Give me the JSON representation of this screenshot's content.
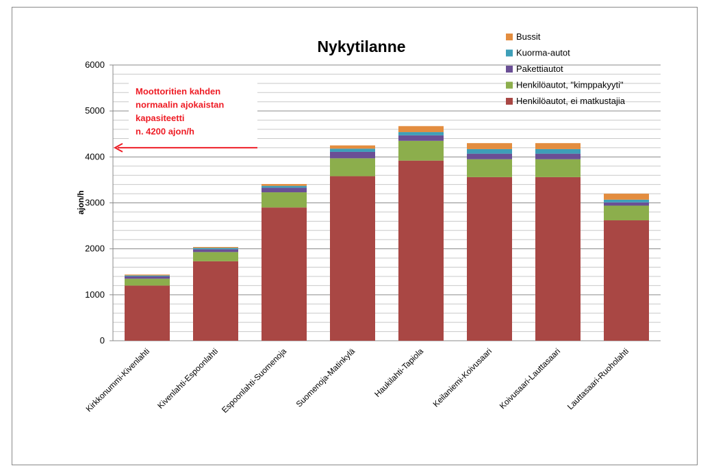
{
  "chart_data": {
    "type": "stacked_bar",
    "title": "Nykytilanne",
    "y_label": "ajon/h",
    "categories": [
      "Kirkkonummi-Kivenlahti",
      "Kivenlahti-Espoonlahti",
      "Espoonlahti-Suomenoja",
      "Suomenoja-Matinkylä",
      "Haukilahti-Tapiola",
      "Keilaniemi-Koivusaari",
      "Koivusaari-Lauttasaari",
      "Lauttasaari-Ruoholahti"
    ],
    "series": [
      {
        "name": "Henkilöautot, ei matkustajia",
        "color": "#a94744",
        "values": [
          1200,
          1730,
          2900,
          3580,
          3920,
          3560,
          3560,
          2620
        ]
      },
      {
        "name": "Henkilöautot, \"kimppakyyti\"",
        "color": "#8cae4c",
        "values": [
          150,
          200,
          330,
          390,
          430,
          390,
          390,
          320
        ]
      },
      {
        "name": "Pakettiautot",
        "color": "#6a4f95",
        "values": [
          50,
          60,
          100,
          140,
          120,
          120,
          120,
          70
        ]
      },
      {
        "name": "Kuorma-autot",
        "color": "#3e9fb8",
        "values": [
          20,
          30,
          40,
          70,
          70,
          100,
          100,
          60
        ]
      },
      {
        "name": "Bussit",
        "color": "#e38d3f",
        "values": [
          20,
          20,
          40,
          70,
          130,
          130,
          130,
          130
        ]
      }
    ],
    "ylim": [
      0,
      6000
    ],
    "yticks": [
      0,
      1000,
      2000,
      3000,
      4000,
      5000,
      6000
    ],
    "minor_yticks": [
      200,
      400,
      600,
      800,
      1200,
      1400,
      1600,
      1800,
      2200,
      2400,
      2600,
      2800,
      3200,
      3400,
      3600,
      3800,
      4200,
      4400,
      4600,
      4800,
      5200,
      5400,
      5600,
      5800
    ],
    "grid": true,
    "annotation": {
      "lines": [
        "Moottoritien kahden",
        "normaalin ajokaistan",
        "kapasiteetti",
        "n. 4200 ajon/h"
      ],
      "value": 4200,
      "color": "#ee1c25"
    }
  }
}
